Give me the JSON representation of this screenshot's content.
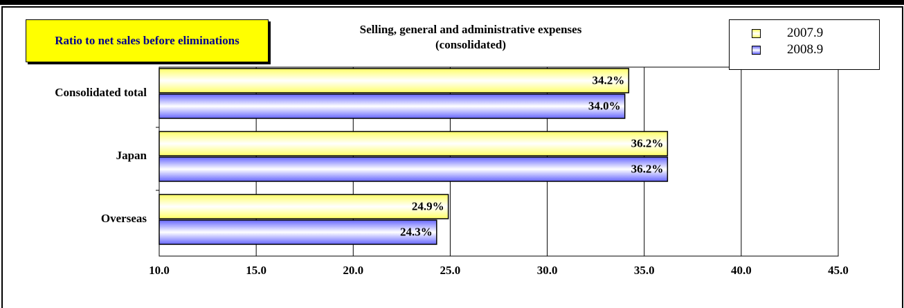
{
  "chart_data": {
    "type": "barh",
    "title": "Selling, general and administrative expenses (consolidated)",
    "annotation": "Ratio to net sales before eliminations",
    "categories": [
      "Consolidated total",
      "Japan",
      "Overseas"
    ],
    "series": [
      {
        "name": "2007.9",
        "color": "#ffff66",
        "values": [
          34.2,
          36.2,
          24.9
        ],
        "value_labels": [
          "34.2%",
          "36.2%",
          "24.9%"
        ]
      },
      {
        "name": "2008.9",
        "color": "#6666ff",
        "values": [
          34.0,
          36.2,
          24.3
        ],
        "value_labels": [
          "34.0%",
          "36.2%",
          "24.3%"
        ]
      }
    ],
    "xlim": [
      10,
      45
    ],
    "xticks": [
      {
        "value": 10,
        "label": "10.0"
      },
      {
        "value": 15,
        "label": "15.0"
      },
      {
        "value": 20,
        "label": "20.0"
      },
      {
        "value": 25,
        "label": "25.0"
      },
      {
        "value": 30,
        "label": "30.0"
      },
      {
        "value": 35,
        "label": "35.0"
      },
      {
        "value": 40,
        "label": "40.0"
      },
      {
        "value": 45,
        "label": "45.0"
      }
    ],
    "grid": true,
    "legend": "upper right"
  }
}
